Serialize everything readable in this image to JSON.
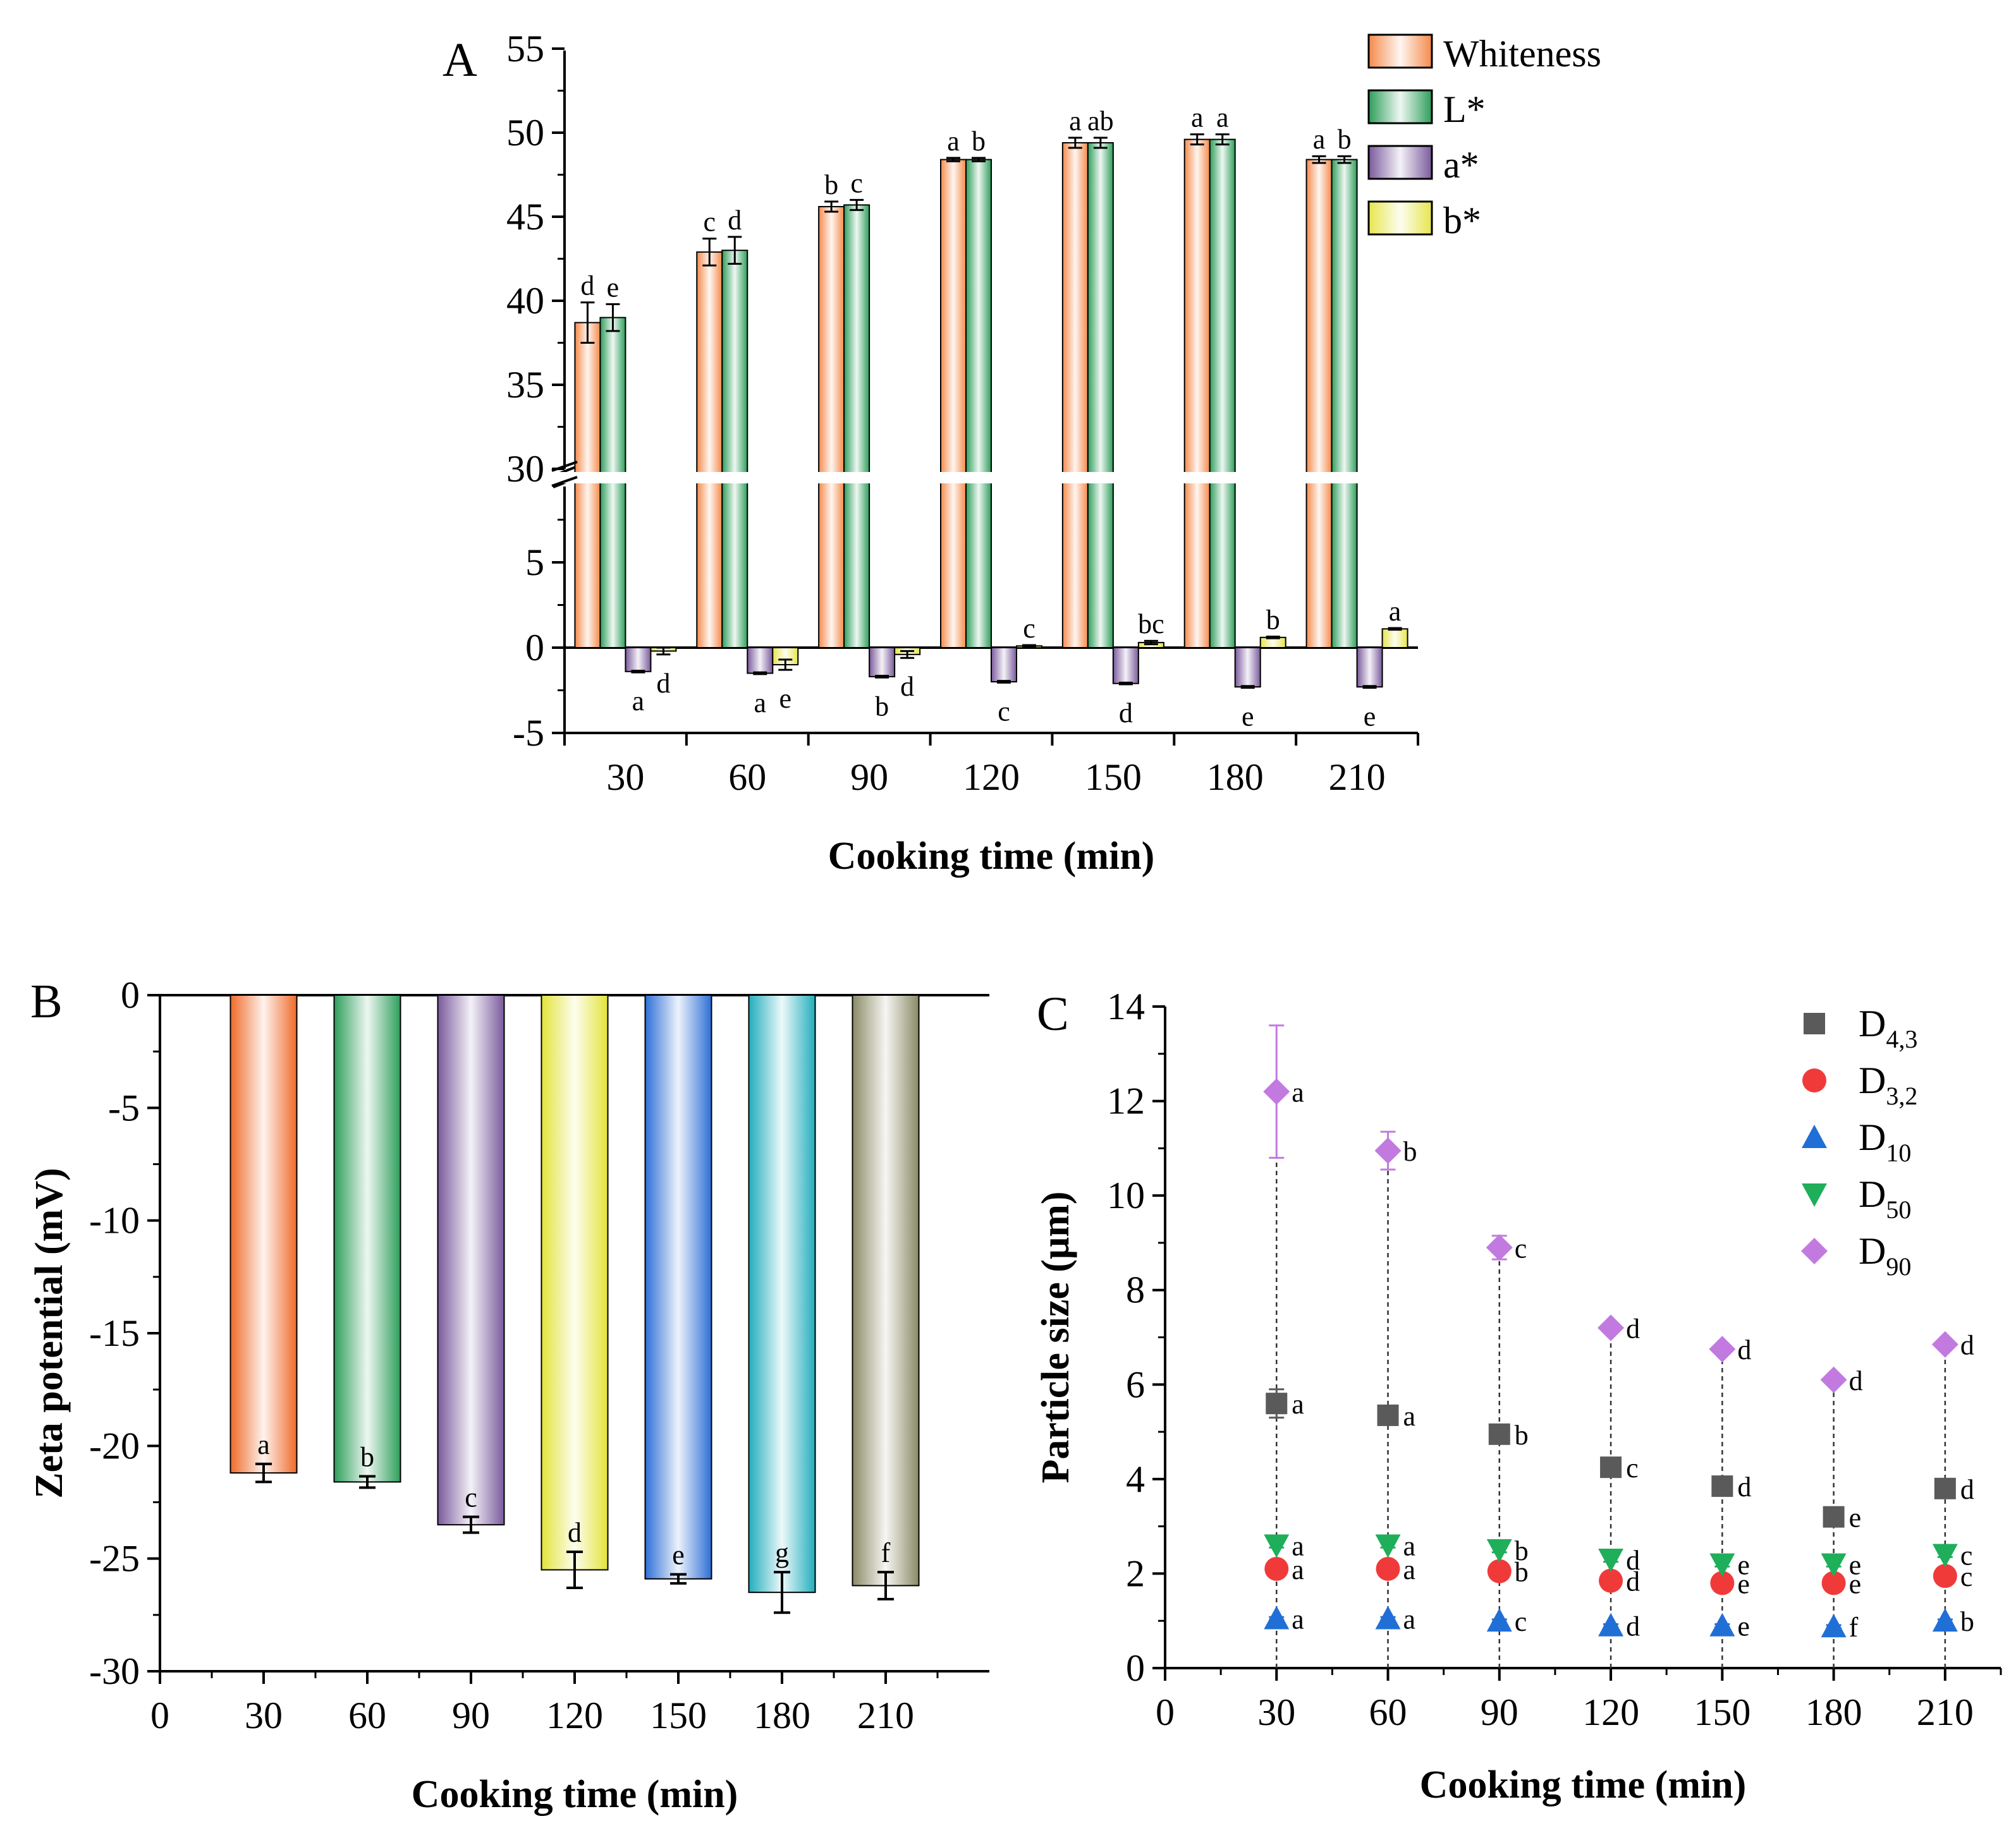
{
  "chart_data": [
    {
      "panel": "A",
      "type": "bar",
      "title": "",
      "xlabel": "Cooking time (min)",
      "ylabel": "",
      "categories": [
        "30",
        "60",
        "90",
        "120",
        "150",
        "180",
        "210"
      ],
      "y_axis_break": [
        10,
        30
      ],
      "ylim": [
        -5,
        55
      ],
      "yticks_lower": [
        "-5",
        "0",
        "5"
      ],
      "yticks_upper": [
        "30",
        "35",
        "40",
        "45",
        "50",
        "55"
      ],
      "legend_position": "top-right",
      "series": [
        {
          "name": "Whiteness",
          "color": "#f58a4b",
          "values": [
            38.7,
            42.9,
            45.6,
            48.4,
            49.4,
            49.6,
            48.4
          ],
          "errors": [
            1.2,
            0.8,
            0.3,
            0.1,
            0.3,
            0.3,
            0.2
          ],
          "letters": [
            "d",
            "c",
            "b",
            "a",
            "a",
            "a",
            "a"
          ]
        },
        {
          "name": "L*",
          "color": "#2e9e5b",
          "values": [
            39.0,
            43.0,
            45.7,
            48.4,
            49.4,
            49.6,
            48.4
          ],
          "errors": [
            0.8,
            0.8,
            0.3,
            0.1,
            0.3,
            0.3,
            0.2
          ],
          "letters": [
            "e",
            "d",
            "c",
            "b",
            "ab",
            "a",
            "b"
          ]
        },
        {
          "name": "a*",
          "color": "#7a5a9c",
          "values": [
            -1.4,
            -1.5,
            -1.7,
            -2.0,
            -2.1,
            -2.3,
            -2.3
          ],
          "errors": [
            0.05,
            0.05,
            0.05,
            0.05,
            0.05,
            0.05,
            0.05
          ],
          "letters": [
            "a",
            "a",
            "b",
            "c",
            "d",
            "e",
            "e"
          ]
        },
        {
          "name": "b*",
          "color": "#e6e64e",
          "values": [
            -0.2,
            -1.0,
            -0.4,
            0.1,
            0.3,
            0.6,
            1.1
          ],
          "errors": [
            0.2,
            0.3,
            0.2,
            0.05,
            0.1,
            0.05,
            0.05
          ],
          "letters": [
            "d",
            "e",
            "d",
            "c",
            "bc",
            "b",
            "a"
          ]
        }
      ]
    },
    {
      "panel": "B",
      "type": "bar",
      "title": "",
      "xlabel": "Cooking time (min)",
      "ylabel": "Zeta potential (mV)",
      "categories": [
        "30",
        "60",
        "90",
        "120",
        "150",
        "180",
        "210"
      ],
      "xticks": [
        "0",
        "30",
        "60",
        "90",
        "120",
        "150",
        "180",
        "210"
      ],
      "ylim": [
        -30,
        0
      ],
      "yticks": [
        "0",
        "-5",
        "-10",
        "-15",
        "-20",
        "-25",
        "-30"
      ],
      "values": [
        -21.2,
        -21.6,
        -23.5,
        -25.5,
        -25.9,
        -26.5,
        -26.2
      ],
      "errors": [
        0.4,
        0.25,
        0.35,
        0.8,
        0.2,
        0.9,
        0.6
      ],
      "letters": [
        "a",
        "b",
        "c",
        "d",
        "e",
        "g",
        "f"
      ],
      "colors": [
        "#f06a2a",
        "#2e9e5b",
        "#7a5a9c",
        "#e3e33a",
        "#2d6fd6",
        "#22aebc",
        "#8a8a66"
      ]
    },
    {
      "panel": "C",
      "type": "scatter",
      "title": "",
      "xlabel": "Cooking time (min)",
      "ylabel": "Particle size (μm)",
      "x": [
        30,
        60,
        90,
        120,
        150,
        180,
        210
      ],
      "xticks": [
        "0",
        "30",
        "60",
        "90",
        "120",
        "150",
        "180",
        "210"
      ],
      "ylim": [
        0,
        14
      ],
      "yticks": [
        "0",
        "2",
        "4",
        "6",
        "8",
        "10",
        "12",
        "14"
      ],
      "legend_position": "top-right",
      "series": [
        {
          "name": "D",
          "sub": "4,3",
          "marker": "square",
          "color": "#5a5a5a",
          "values": [
            5.6,
            5.35,
            4.95,
            4.25,
            3.85,
            3.2,
            3.8
          ],
          "errors": [
            0.3,
            0.1,
            0.1,
            0.1,
            0.1,
            0.1,
            0.05
          ],
          "letters": [
            "a",
            "a",
            "b",
            "c",
            "d",
            "e",
            "d"
          ]
        },
        {
          "name": "D",
          "sub": "3,2",
          "marker": "circle",
          "color": "#f03a3a",
          "values": [
            2.1,
            2.1,
            2.05,
            1.85,
            1.8,
            1.8,
            1.95
          ],
          "errors": [
            0.05,
            0.05,
            0.05,
            0.05,
            0.05,
            0.05,
            0.05
          ],
          "letters": [
            "a",
            "a",
            "b",
            "d",
            "e",
            "e",
            "c"
          ]
        },
        {
          "name": "D",
          "sub": "10",
          "marker": "triangle-up",
          "color": "#1f6fd6",
          "values": [
            1.05,
            1.05,
            1.0,
            0.9,
            0.9,
            0.88,
            1.0
          ],
          "errors": [
            0.03,
            0.03,
            0.03,
            0.03,
            0.03,
            0.03,
            0.03
          ],
          "letters": [
            "a",
            "a",
            "c",
            "d",
            "e",
            "f",
            "b"
          ]
        },
        {
          "name": "D",
          "sub": "50",
          "marker": "triangle-down",
          "color": "#1fae5a",
          "values": [
            2.6,
            2.6,
            2.5,
            2.3,
            2.2,
            2.2,
            2.4
          ],
          "errors": [
            0.05,
            0.05,
            0.05,
            0.05,
            0.05,
            0.05,
            0.05
          ],
          "letters": [
            "a",
            "a",
            "b",
            "d",
            "e",
            "e",
            "c"
          ]
        },
        {
          "name": "D",
          "sub": "90",
          "marker": "diamond",
          "color": "#c27ae0",
          "values": [
            12.2,
            10.95,
            8.9,
            7.2,
            6.75,
            6.1,
            6.85
          ],
          "errors": [
            1.4,
            0.4,
            0.25,
            0.1,
            0.1,
            0.1,
            0.1
          ],
          "letters": [
            "a",
            "b",
            "c",
            "d",
            "d",
            "d",
            "d"
          ]
        }
      ]
    }
  ]
}
